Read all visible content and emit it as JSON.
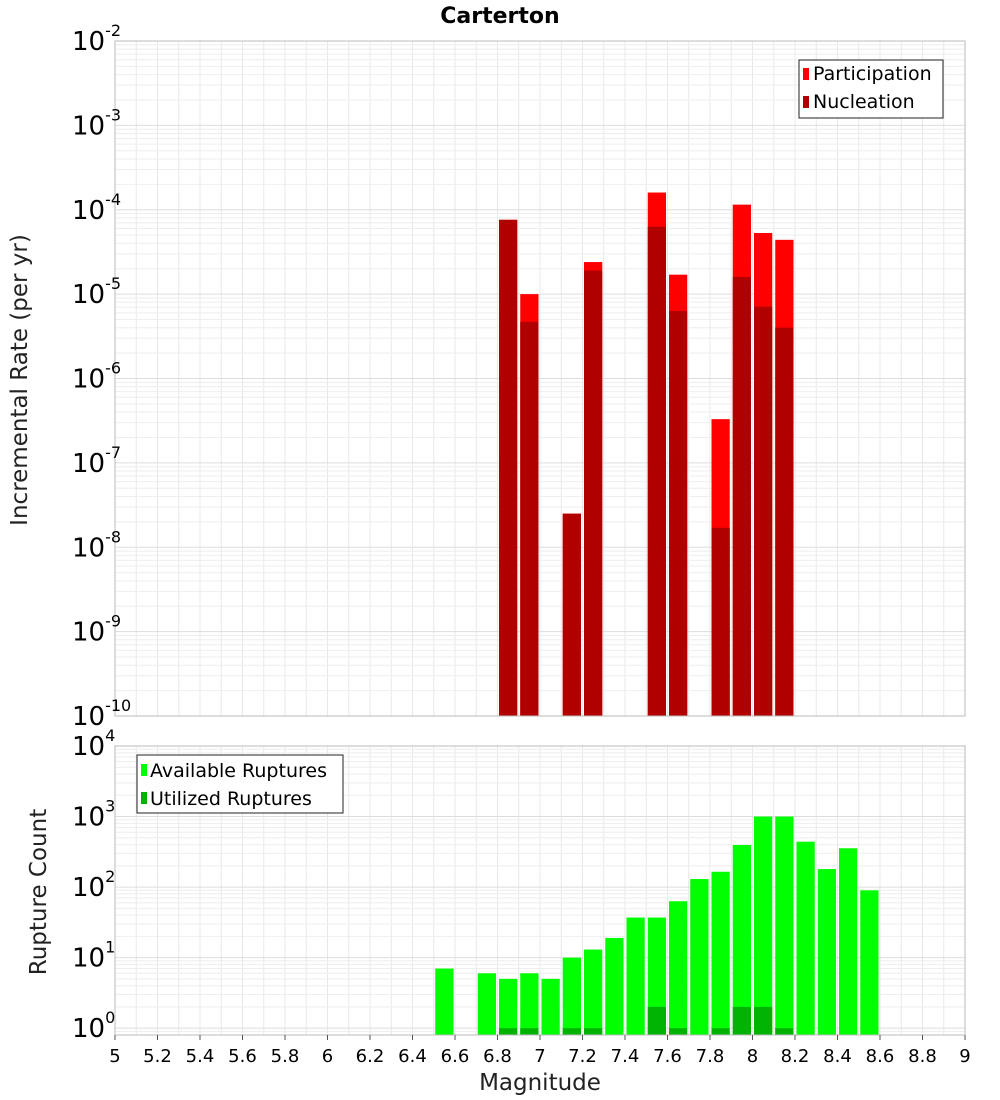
{
  "chart_data": [
    {
      "type": "bar",
      "title": "Carterton",
      "ylabel": "Incremental Rate (per yr)",
      "yscale": "log",
      "ylim": [
        1e-10,
        0.01
      ],
      "xlim": [
        5,
        9
      ],
      "grid": true,
      "legend_position": "top-right",
      "bin_width": 0.1,
      "series": [
        {
          "name": "Participation",
          "color": "#ff0000",
          "x": [
            6.85,
            6.95,
            7.15,
            7.25,
            7.55,
            7.65,
            7.85,
            7.95,
            8.05,
            8.15
          ],
          "values": [
            7.6e-05,
            1e-05,
            2.5e-08,
            2.4e-05,
            0.00016,
            1.7e-05,
            3.3e-07,
            0.000115,
            5.3e-05,
            4.4e-05
          ]
        },
        {
          "name": "Nucleation",
          "color": "#b00000",
          "x": [
            6.85,
            6.95,
            7.15,
            7.25,
            7.55,
            7.65,
            7.85,
            7.95,
            8.05,
            8.15
          ],
          "values": [
            7.6e-05,
            4.7e-06,
            2.5e-08,
            1.9e-05,
            6.3e-05,
            6.3e-06,
            1.7e-08,
            1.6e-05,
            7.1e-06,
            4e-06
          ]
        }
      ]
    },
    {
      "type": "bar",
      "xlabel": "Magnitude",
      "ylabel": "Rupture Count",
      "yscale": "log",
      "ylim": [
        0.8,
        10000
      ],
      "xlim": [
        5,
        9
      ],
      "grid": true,
      "legend_position": "top-left",
      "bin_width": 0.1,
      "xticks": [
        "5",
        "5.2",
        "5.4",
        "5.6",
        "5.8",
        "6",
        "6.2",
        "6.4",
        "6.6",
        "6.8",
        "7",
        "7.2",
        "7.4",
        "7.6",
        "7.8",
        "8",
        "8.2",
        "8.4",
        "8.6",
        "8.8",
        "9"
      ],
      "series": [
        {
          "name": "Available Ruptures",
          "color": "#00ff00",
          "x": [
            6.55,
            6.75,
            6.85,
            6.95,
            7.05,
            7.15,
            7.25,
            7.35,
            7.45,
            7.55,
            7.65,
            7.75,
            7.85,
            7.95,
            8.05,
            8.15,
            8.25,
            8.35,
            8.45,
            8.55
          ],
          "values": [
            7,
            6,
            5,
            6,
            5,
            10,
            13,
            19,
            37,
            37,
            63,
            130,
            165,
            395,
            1000,
            1000,
            440,
            180,
            355,
            90
          ]
        },
        {
          "name": "Utilized Ruptures",
          "color": "#00b300",
          "x": [
            6.85,
            6.95,
            7.15,
            7.25,
            7.55,
            7.65,
            7.85,
            7.95,
            8.05,
            8.15
          ],
          "values": [
            1,
            1,
            1,
            1,
            2,
            1,
            1,
            2,
            2,
            1
          ]
        }
      ]
    }
  ]
}
